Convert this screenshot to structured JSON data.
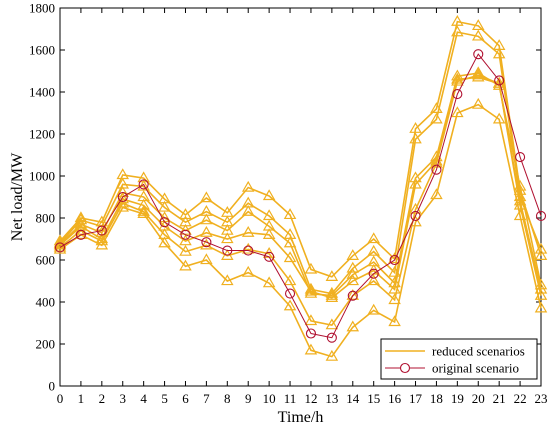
{
  "chart_data": {
    "type": "line",
    "xlabel": "Time/h",
    "ylabel": "Net load/MW",
    "xlim": [
      0,
      23
    ],
    "ylim": [
      0,
      1800
    ],
    "x_ticks": [
      0,
      1,
      2,
      3,
      4,
      5,
      6,
      7,
      8,
      9,
      10,
      11,
      12,
      13,
      14,
      15,
      16,
      17,
      18,
      19,
      20,
      21,
      22,
      23
    ],
    "y_ticks": [
      0,
      200,
      400,
      600,
      800,
      1000,
      1200,
      1400,
      1600,
      1800
    ],
    "grid": false,
    "legend_position": "bottom-right",
    "legend": [
      {
        "label": "reduced scenarios",
        "color": "#f0b020",
        "marker": "triangle"
      },
      {
        "label": "original scenario",
        "color": "#b01030",
        "marker": "circle"
      }
    ],
    "x": [
      0,
      1,
      2,
      3,
      4,
      5,
      6,
      7,
      8,
      9,
      10,
      11,
      12,
      13,
      14,
      15,
      16,
      17,
      18,
      19,
      20,
      21,
      22,
      23
    ],
    "series": [
      {
        "group": "reduced scenarios",
        "color": "#f0b020",
        "marker": "triangle",
        "values": [
          690,
          800,
          780,
          1005,
          990,
          890,
          815,
          895,
          825,
          945,
          905,
          815,
          555,
          520,
          620,
          700,
          605,
          1225,
          1320,
          1735,
          1715,
          1620,
          930,
          620
        ]
      },
      {
        "group": "reduced scenarios",
        "color": "#f0b020",
        "marker": "triangle",
        "values": [
          680,
          790,
          760,
          960,
          950,
          850,
          780,
          830,
          780,
          870,
          810,
          720,
          460,
          440,
          560,
          640,
          540,
          1175,
          1270,
          1685,
          1665,
          1580,
          900,
          650
        ]
      },
      {
        "group": "reduced scenarios",
        "color": "#f0b020",
        "marker": "triangle",
        "values": [
          675,
          770,
          730,
          920,
          900,
          800,
          740,
          790,
          740,
          830,
          760,
          680,
          440,
          430,
          530,
          590,
          490,
          990,
          1090,
          1475,
          1490,
          1430,
          950,
          480
        ]
      },
      {
        "group": "reduced scenarios",
        "color": "#f0b020",
        "marker": "triangle",
        "values": [
          670,
          760,
          700,
          890,
          860,
          760,
          690,
          730,
          700,
          730,
          720,
          610,
          450,
          420,
          500,
          550,
          460,
          960,
          1070,
          1460,
          1470,
          1440,
          880,
          460
        ]
      },
      {
        "group": "reduced scenarios",
        "color": "#f0b020",
        "marker": "triangle",
        "values": [
          660,
          740,
          690,
          870,
          830,
          720,
          640,
          670,
          620,
          650,
          630,
          500,
          310,
          290,
          430,
          500,
          410,
          840,
          1060,
          1450,
          1480,
          1440,
          860,
          430
        ]
      },
      {
        "group": "reduced scenarios",
        "color": "#f0b020",
        "marker": "triangle",
        "values": [
          650,
          720,
          670,
          850,
          820,
          680,
          570,
          600,
          500,
          540,
          490,
          380,
          170,
          140,
          280,
          360,
          305,
          780,
          910,
          1300,
          1340,
          1270,
          810,
          370
        ]
      },
      {
        "group": "original scenario",
        "color": "#b01030",
        "marker": "circle",
        "values": [
          660,
          720,
          740,
          900,
          960,
          780,
          720,
          685,
          645,
          645,
          615,
          440,
          250,
          230,
          430,
          535,
          600,
          810,
          1030,
          1390,
          1580,
          1455,
          1090,
          810
        ]
      }
    ]
  }
}
